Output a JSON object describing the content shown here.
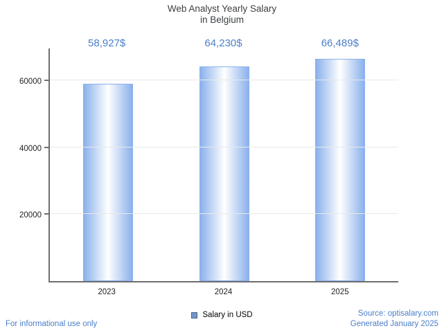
{
  "title": {
    "line1": "Web Analyst Yearly Salary",
    "line2": "in Belgium"
  },
  "chart_data": {
    "type": "bar",
    "title": "Web Analyst Yearly Salary in Belgium",
    "categories": [
      "2023",
      "2024",
      "2025"
    ],
    "values": [
      58927,
      64230,
      66489
    ],
    "value_labels": [
      "58,927$",
      "64,230$",
      "66,489$"
    ],
    "series_name": "Salary in USD",
    "xlabel": "",
    "ylabel": "",
    "ylim": [
      0,
      70000
    ],
    "yticks": [
      20000,
      40000,
      60000
    ],
    "grid": true,
    "legend_position": "bottom"
  },
  "legend": {
    "label": "Salary in USD"
  },
  "footer": {
    "left": "For informational use only",
    "source": "Source: optisalary.com",
    "generated": "Generated January 2025"
  },
  "colors": {
    "accent_blue": "#4a7ec9",
    "bar_edge": "#8ab1ec",
    "bar_center": "#ffffff",
    "axis": "#6e6e6e",
    "grid": "#e9e9e9",
    "text_dark": "#3c4043",
    "legend_marker": "#7396cc",
    "legend_marker_border": "#44618c"
  }
}
